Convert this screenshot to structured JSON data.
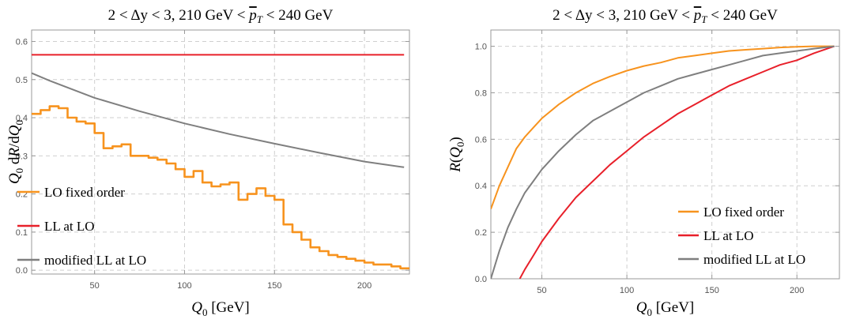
{
  "colors": {
    "lo_fixed": "#f7931e",
    "ll_lo": "#e8202a",
    "mod_ll": "#7f7f7f"
  },
  "chart_data": [
    {
      "type": "line",
      "title": "2 < Δy < 3, 210 GeV < p̅T < 240 GeV",
      "xlabel": "Q0 [GeV]",
      "ylabel": "Q0 dR/dQ0",
      "xlim": [
        15,
        225
      ],
      "ylim": [
        -0.01,
        0.63
      ],
      "xticks": [
        50,
        100,
        150,
        200
      ],
      "yticks": [
        0.0,
        0.1,
        0.2,
        0.3,
        0.4,
        0.5,
        0.6
      ],
      "ytick_labels": [
        "0.0",
        "0.1",
        "0.2",
        "0.3",
        "0.4",
        "0.5",
        "0.6"
      ],
      "grid": true,
      "legend_position": "bottom-left",
      "series": [
        {
          "name": "LO fixed order",
          "style": "step",
          "color": "#f7931e",
          "edges": [
            15,
            20,
            25,
            30,
            35,
            40,
            45,
            50,
            55,
            60,
            65,
            70,
            75,
            80,
            85,
            90,
            95,
            100,
            105,
            110,
            115,
            120,
            125,
            130,
            135,
            140,
            145,
            150,
            155,
            160,
            165,
            170,
            175,
            180,
            185,
            190,
            195,
            200,
            205,
            210,
            215,
            220,
            225
          ],
          "values": [
            0.41,
            0.42,
            0.43,
            0.425,
            0.4,
            0.39,
            0.385,
            0.36,
            0.32,
            0.325,
            0.33,
            0.3,
            0.3,
            0.295,
            0.29,
            0.28,
            0.265,
            0.245,
            0.26,
            0.23,
            0.22,
            0.225,
            0.23,
            0.185,
            0.2,
            0.215,
            0.195,
            0.185,
            0.12,
            0.1,
            0.08,
            0.06,
            0.05,
            0.04,
            0.035,
            0.03,
            0.025,
            0.02,
            0.015,
            0.015,
            0.01,
            0.005
          ]
        },
        {
          "name": "LL at LO",
          "style": "line",
          "color": "#e8202a",
          "x": [
            15,
            222
          ],
          "y": [
            0.565,
            0.565
          ]
        },
        {
          "name": "modified LL at LO",
          "style": "line",
          "color": "#7f7f7f",
          "x": [
            15,
            25,
            50,
            75,
            100,
            125,
            150,
            175,
            200,
            222
          ],
          "y": [
            0.517,
            0.497,
            0.452,
            0.417,
            0.385,
            0.357,
            0.332,
            0.308,
            0.285,
            0.27
          ]
        }
      ]
    },
    {
      "type": "line",
      "title": "2 < Δy < 3, 210 GeV < p̅T < 240 GeV",
      "xlabel": "Q0 [GeV]",
      "ylabel": "R(Q0)",
      "xlim": [
        20,
        225
      ],
      "ylim": [
        0.0,
        1.07
      ],
      "xticks": [
        50,
        100,
        150,
        200
      ],
      "yticks": [
        0.0,
        0.2,
        0.4,
        0.6,
        0.8,
        1.0
      ],
      "ytick_labels": [
        "0.0",
        "0.2",
        "0.4",
        "0.6",
        "0.8",
        "1.0"
      ],
      "grid": true,
      "legend_position": "bottom-right",
      "series": [
        {
          "name": "LO fixed order",
          "color": "#f7931e",
          "x": [
            20,
            25,
            30,
            35,
            40,
            45,
            50,
            60,
            70,
            80,
            90,
            100,
            110,
            120,
            130,
            140,
            150,
            160,
            170,
            180,
            190,
            200,
            210,
            222
          ],
          "y": [
            0.3,
            0.4,
            0.48,
            0.56,
            0.61,
            0.65,
            0.69,
            0.75,
            0.8,
            0.84,
            0.87,
            0.895,
            0.915,
            0.93,
            0.95,
            0.96,
            0.97,
            0.98,
            0.985,
            0.99,
            0.995,
            0.998,
            1.0,
            1.0
          ]
        },
        {
          "name": "LL at LO",
          "color": "#e8202a",
          "x": [
            37,
            40,
            45,
            50,
            60,
            70,
            80,
            90,
            100,
            110,
            120,
            130,
            140,
            150,
            160,
            170,
            180,
            190,
            200,
            210,
            222
          ],
          "y": [
            0.0,
            0.04,
            0.1,
            0.16,
            0.26,
            0.35,
            0.42,
            0.49,
            0.55,
            0.61,
            0.66,
            0.71,
            0.75,
            0.79,
            0.83,
            0.86,
            0.89,
            0.92,
            0.94,
            0.97,
            1.0
          ]
        },
        {
          "name": "modified LL at LO",
          "color": "#7f7f7f",
          "x": [
            20,
            25,
            30,
            35,
            40,
            45,
            50,
            60,
            70,
            80,
            90,
            100,
            110,
            120,
            130,
            140,
            150,
            160,
            170,
            180,
            190,
            200,
            210,
            222
          ],
          "y": [
            0.0,
            0.12,
            0.22,
            0.3,
            0.37,
            0.42,
            0.47,
            0.55,
            0.62,
            0.68,
            0.72,
            0.76,
            0.8,
            0.83,
            0.86,
            0.88,
            0.9,
            0.92,
            0.94,
            0.96,
            0.97,
            0.98,
            0.99,
            1.0
          ]
        }
      ]
    }
  ]
}
